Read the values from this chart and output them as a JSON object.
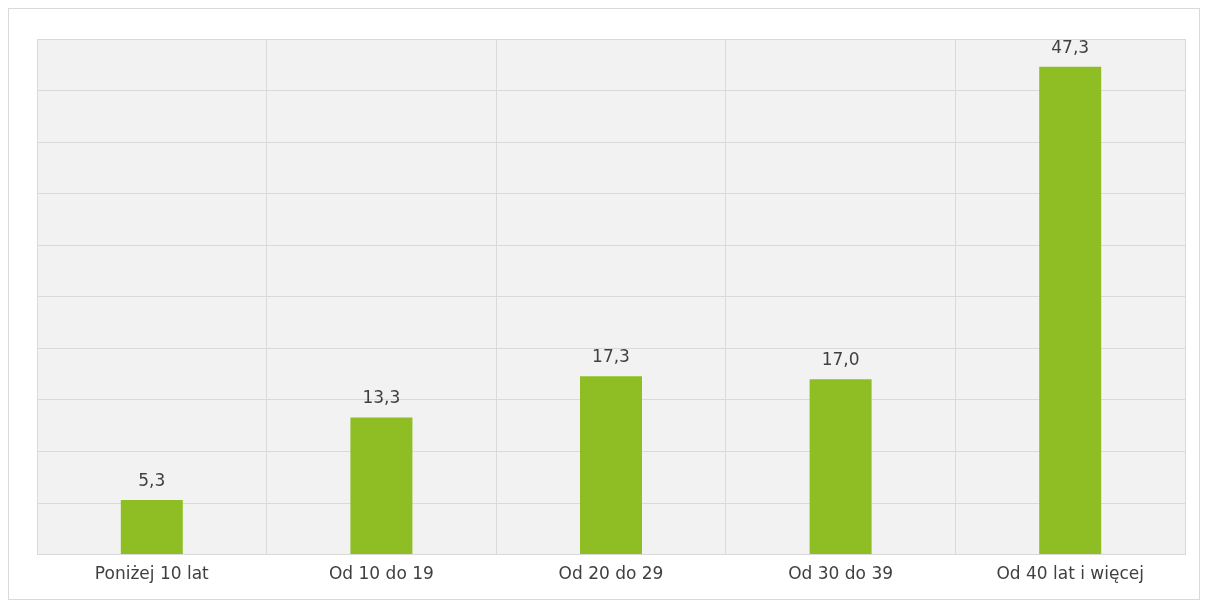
{
  "chart_data": {
    "type": "bar",
    "categories": [
      "Poniżej 10 lat",
      "Od 10 do 19",
      "Od 20 do 29",
      "Od 30 do 39",
      "Od 40 lat i więcej"
    ],
    "values": [
      5.3,
      13.3,
      17.3,
      17.0,
      47.3
    ],
    "value_labels": [
      "5,3",
      "13,3",
      "17,3",
      "17,0",
      "47,3"
    ],
    "color": "#8fbe24",
    "ylim": [
      0,
      50
    ],
    "yticks": [
      {
        "value": 0,
        "label": null
      },
      {
        "value": 5,
        "label": null
      },
      {
        "value": 10,
        "label": null
      },
      {
        "value": 15,
        "label": null
      },
      {
        "value": 20,
        "label": null
      },
      {
        "value": 25,
        "label": null
      },
      {
        "value": 30,
        "label": null
      },
      {
        "value": 35,
        "label": null
      },
      {
        "value": 40,
        "label": null
      },
      {
        "value": 45,
        "label": null
      },
      {
        "value": 50,
        "label": null
      }
    ],
    "tick_labels": "x",
    "grid": true,
    "legend": false
  }
}
